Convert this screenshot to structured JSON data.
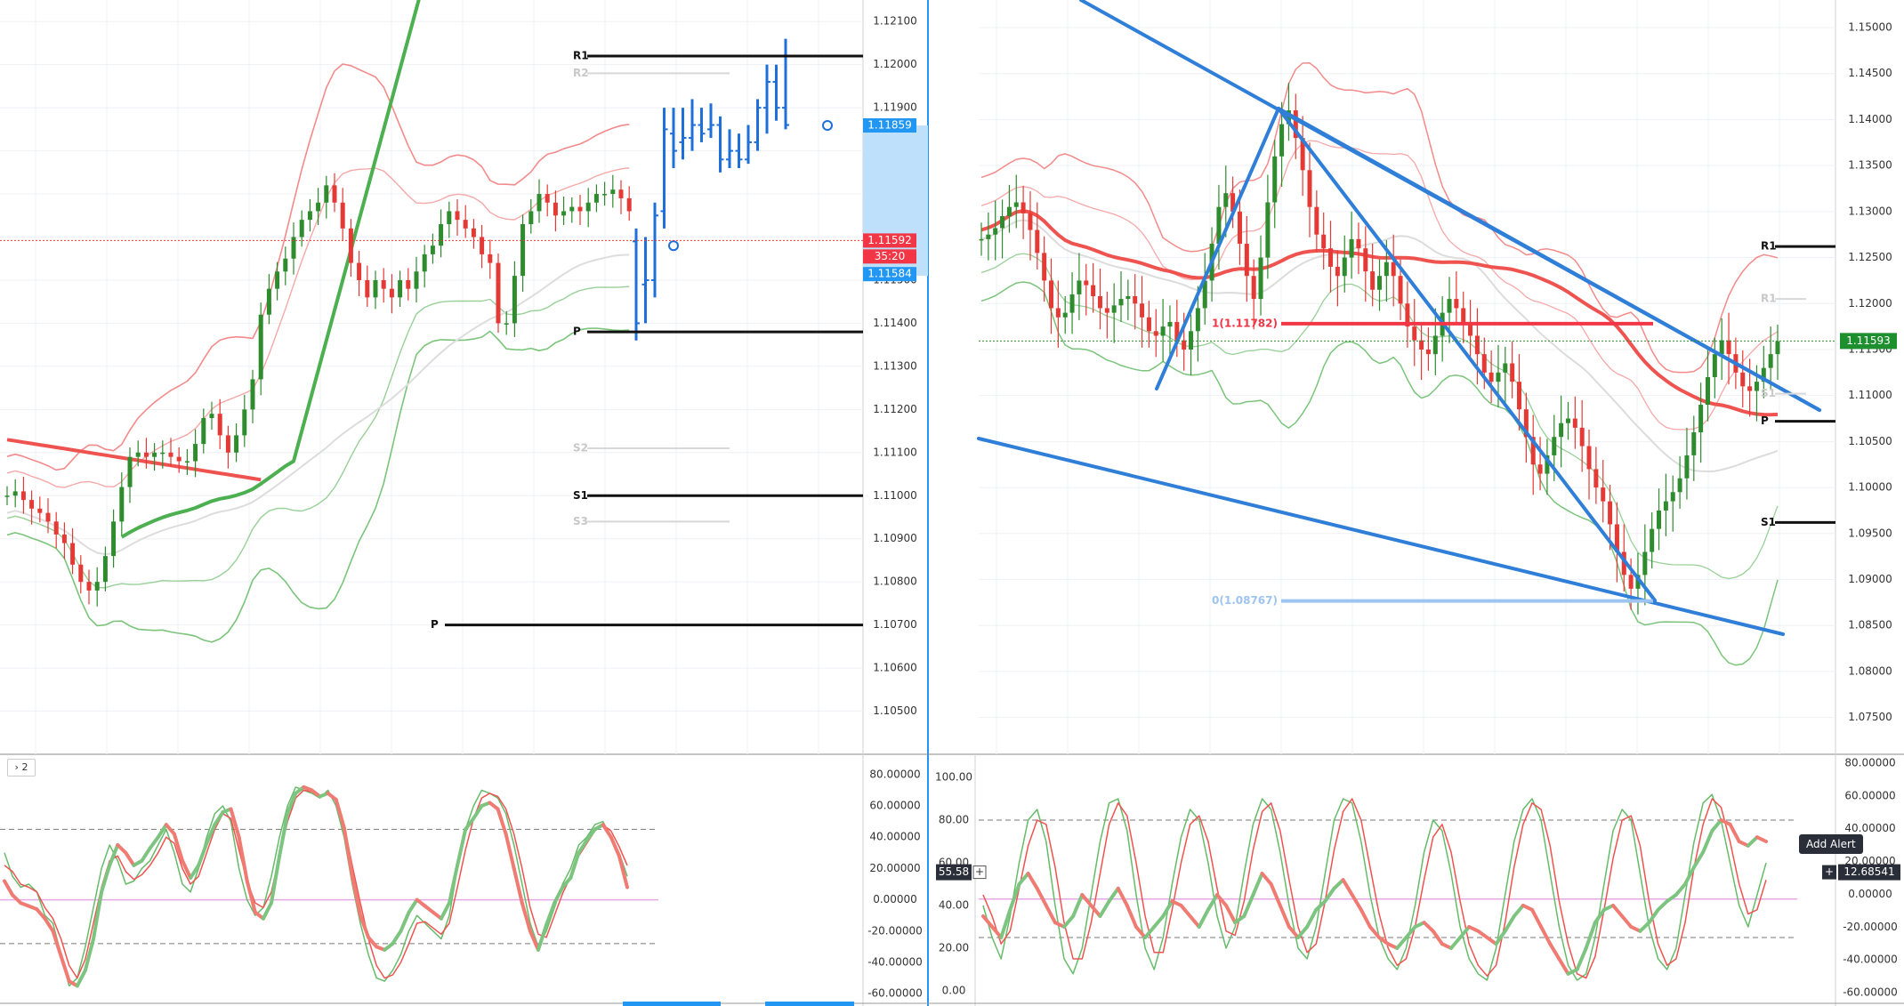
{
  "chart_data": [
    {
      "type": "candlestick",
      "pane": "left-price",
      "ylim": [
        1.104,
        1.1215
      ],
      "y_ticks": [
        "1.12100",
        "1.12000",
        "1.11900",
        "1.11800",
        "1.11700",
        "1.11600",
        "1.11500",
        "1.11400",
        "1.11300",
        "1.11200",
        "1.11100",
        "1.11000",
        "1.10900",
        "1.10800",
        "1.10700",
        "1.10600",
        "1.10500"
      ],
      "price_tags": [
        {
          "label": "1.11859",
          "value": 1.11859,
          "color": "#2196f3"
        },
        {
          "label": "1.11592",
          "value": 1.11592,
          "color": "#f23645"
        },
        {
          "label": "35:20",
          "value": 1.11555,
          "color": "#f23645"
        },
        {
          "label": "1.11584",
          "value": 1.11514,
          "color": "#2196f3"
        }
      ],
      "pivot_levels": [
        {
          "label": "R1",
          "value": 1.1202,
          "style": "solid"
        },
        {
          "label": "R2",
          "value": 1.1198,
          "style": "faint"
        },
        {
          "label": "P",
          "value": 1.1138,
          "style": "solid"
        },
        {
          "label": "S2",
          "value": 1.1111,
          "style": "faint"
        },
        {
          "label": "S1",
          "value": 1.11,
          "style": "solid"
        },
        {
          "label": "S3",
          "value": 1.1094,
          "style": "faint"
        },
        {
          "label": "P",
          "value": 1.107,
          "style": "solid"
        }
      ],
      "last_price_line": 1.11592,
      "candles": [
        1.11,
        1.1101,
        1.1099,
        1.1097,
        1.1096,
        1.1094,
        1.1091,
        1.1089,
        1.1084,
        1.108,
        1.1078,
        1.108,
        1.1086,
        1.1094,
        1.1102,
        1.1109,
        1.111,
        1.1109,
        1.111,
        1.111,
        1.1109,
        1.1108,
        1.1108,
        1.1112,
        1.1118,
        1.1119,
        1.1114,
        1.111,
        1.1114,
        1.112,
        1.1127,
        1.1142,
        1.1148,
        1.1152,
        1.1155,
        1.116,
        1.1164,
        1.1166,
        1.1168,
        1.1172,
        1.1168,
        1.1162,
        1.1154,
        1.115,
        1.1146,
        1.115,
        1.1148,
        1.1146,
        1.115,
        1.1148,
        1.1152,
        1.1156,
        1.1158,
        1.1163,
        1.1166,
        1.1164,
        1.1162,
        1.116,
        1.1156,
        1.1154,
        1.114,
        1.114,
        1.1151,
        1.1163,
        1.1166,
        1.117,
        1.1168,
        1.1165,
        1.1166,
        1.1167,
        1.1166,
        1.1168,
        1.117,
        1.117,
        1.1171,
        1.1169,
        1.1166
      ],
      "projection_bars": [
        {
          "o": 1.1159,
          "h": 1.1162,
          "l": 1.1136,
          "c": 1.114
        },
        {
          "o": 1.1149,
          "h": 1.116,
          "l": 1.114,
          "c": 1.115
        },
        {
          "o": 1.115,
          "h": 1.1168,
          "l": 1.1146,
          "c": 1.1165
        },
        {
          "o": 1.1166,
          "h": 1.119,
          "l": 1.1162,
          "c": 1.1185
        },
        {
          "o": 1.1184,
          "h": 1.119,
          "l": 1.1176,
          "c": 1.118
        },
        {
          "o": 1.1182,
          "h": 1.119,
          "l": 1.1178,
          "c": 1.1183
        },
        {
          "o": 1.1183,
          "h": 1.1192,
          "l": 1.118,
          "c": 1.1186
        },
        {
          "o": 1.1186,
          "h": 1.119,
          "l": 1.1182,
          "c": 1.1184
        },
        {
          "o": 1.1185,
          "h": 1.1191,
          "l": 1.1183,
          "c": 1.1186
        },
        {
          "o": 1.1186,
          "h": 1.1188,
          "l": 1.1175,
          "c": 1.1178
        },
        {
          "o": 1.1178,
          "h": 1.1185,
          "l": 1.1176,
          "c": 1.118
        },
        {
          "o": 1.118,
          "h": 1.1184,
          "l": 1.1176,
          "c": 1.1178
        },
        {
          "o": 1.1178,
          "h": 1.1186,
          "l": 1.1177,
          "c": 1.1182
        },
        {
          "o": 1.1182,
          "h": 1.1192,
          "l": 1.118,
          "c": 1.119
        },
        {
          "o": 1.119,
          "h": 1.12,
          "l": 1.1184,
          "c": 1.1196
        },
        {
          "o": 1.1196,
          "h": 1.12,
          "l": 1.1187,
          "c": 1.119
        },
        {
          "o": 1.119,
          "h": 1.1206,
          "l": 1.1185,
          "c": 1.1186
        }
      ]
    },
    {
      "type": "candlestick",
      "pane": "right-price",
      "ylim": [
        1.071,
        1.153
      ],
      "y_ticks": [
        "1.15000",
        "1.14500",
        "1.14000",
        "1.13500",
        "1.13000",
        "1.12500",
        "1.12000",
        "1.11500",
        "1.11000",
        "1.10500",
        "1.10000",
        "1.09500",
        "1.09000",
        "1.08500",
        "1.08000",
        "1.07500"
      ],
      "price_tags": [
        {
          "label": "1.11593",
          "value": 1.11593,
          "color": "#1e8f2e"
        }
      ],
      "pivot_levels": [
        {
          "label": "R1",
          "value": 1.1262,
          "style": "solid"
        },
        {
          "label": "R1",
          "value": 1.1205,
          "style": "faint"
        },
        {
          "label": "S1",
          "value": 1.1102,
          "style": "faint"
        },
        {
          "label": "P",
          "value": 1.1072,
          "style": "solid"
        },
        {
          "label": "S1",
          "value": 1.0962,
          "style": "solid"
        }
      ],
      "fib_levels": [
        {
          "label": "1(1.11782)",
          "value": 1.11782,
          "color": "#f23645"
        },
        {
          "label": "0(1.08767)",
          "value": 1.08767,
          "color": "#9ec5f0"
        }
      ],
      "candles": [
        1.127,
        1.1275,
        1.1282,
        1.1295,
        1.1305,
        1.131,
        1.1298,
        1.128,
        1.1255,
        1.1225,
        1.1195,
        1.1185,
        1.119,
        1.121,
        1.1225,
        1.122,
        1.1208,
        1.1195,
        1.119,
        1.1198,
        1.1205,
        1.1208,
        1.12,
        1.1185,
        1.117,
        1.1165,
        1.1175,
        1.118,
        1.116,
        1.115,
        1.117,
        1.1195,
        1.1225,
        1.1265,
        1.1305,
        1.132,
        1.13,
        1.1265,
        1.123,
        1.1205,
        1.125,
        1.131,
        1.136,
        1.1395,
        1.141,
        1.138,
        1.1345,
        1.1305,
        1.1275,
        1.126,
        1.124,
        1.123,
        1.125,
        1.127,
        1.126,
        1.1235,
        1.1215,
        1.123,
        1.1245,
        1.123,
        1.12,
        1.1175,
        1.116,
        1.115,
        1.1145,
        1.1165,
        1.119,
        1.1205,
        1.1195,
        1.118,
        1.1165,
        1.1145,
        1.1125,
        1.1115,
        1.1125,
        1.1135,
        1.1115,
        1.1085,
        1.1055,
        1.1025,
        1.1015,
        1.1035,
        1.1055,
        1.107,
        1.1075,
        1.1065,
        1.1045,
        1.102,
        1.1,
        1.0985,
        1.096,
        1.093,
        1.0905,
        1.089,
        1.0905,
        1.093,
        1.0955,
        1.0975,
        1.0985,
        1.0995,
        1.101,
        1.1035,
        1.106,
        1.109,
        1.112,
        1.1145,
        1.116,
        1.1145,
        1.1125,
        1.111,
        1.1105,
        1.1115,
        1.113,
        1.1145,
        1.1159
      ]
    },
    {
      "type": "oscillator",
      "pane": "left-oscillator",
      "ylim": [
        -65,
        85
      ],
      "y_ticks": [
        "80.00000",
        "60.00000",
        "40.00000",
        "20.00000",
        "0.00000",
        "-20.00000",
        "-40.00000",
        "-60.00000"
      ],
      "bands": [
        45,
        -28
      ],
      "zero_line": 0,
      "k": [
        30,
        15,
        8,
        10,
        5,
        -10,
        -15,
        -35,
        -55,
        -50,
        -30,
        -5,
        20,
        35,
        25,
        10,
        12,
        20,
        25,
        35,
        45,
        30,
        10,
        5,
        20,
        40,
        55,
        60,
        50,
        20,
        0,
        -10,
        -5,
        15,
        40,
        60,
        72,
        70,
        68,
        65,
        70,
        60,
        40,
        10,
        -15,
        -35,
        -50,
        -52,
        -45,
        -35,
        -20,
        -10,
        -15,
        -20,
        -25,
        -10,
        20,
        45,
        60,
        70,
        68,
        65,
        55,
        35,
        10,
        -15,
        -30,
        -20,
        -5,
        10,
        20,
        35,
        40,
        48,
        50,
        40,
        30,
        15
      ],
      "d": [
        22,
        18,
        10,
        8,
        5,
        -5,
        -12,
        -25,
        -42,
        -50,
        -38,
        -15,
        8,
        25,
        28,
        18,
        13,
        16,
        22,
        30,
        40,
        36,
        20,
        10,
        15,
        30,
        45,
        55,
        52,
        32,
        12,
        -2,
        -5,
        5,
        28,
        50,
        65,
        70,
        69,
        66,
        68,
        64,
        48,
        22,
        -2,
        -25,
        -42,
        -50,
        -48,
        -40,
        -28,
        -15,
        -14,
        -18,
        -22,
        -15,
        8,
        32,
        52,
        65,
        68,
        66,
        58,
        42,
        20,
        -5,
        -22,
        -24,
        -10,
        4,
        15,
        28,
        36,
        44,
        48,
        44,
        34,
        22
      ],
      "thick": [
        12,
        3,
        -2,
        -4,
        -6,
        -12,
        -20,
        -36,
        -52,
        -55,
        -45,
        -25,
        5,
        22,
        35,
        30,
        22,
        25,
        33,
        40,
        48,
        42,
        25,
        14,
        22,
        36,
        48,
        56,
        58,
        40,
        12,
        -8,
        -12,
        -2,
        28,
        55,
        68,
        72,
        70,
        66,
        68,
        64,
        46,
        15,
        -10,
        -24,
        -30,
        -32,
        -28,
        -20,
        -8,
        0,
        -4,
        -8,
        -12,
        -2,
        22,
        45,
        52,
        60,
        62,
        58,
        42,
        20,
        -2,
        -20,
        -32,
        -16,
        -2,
        8,
        14,
        30,
        38,
        45,
        48,
        40,
        28,
        8
      ]
    },
    {
      "type": "oscillator",
      "pane": "right-oscillator",
      "ylim": [
        -5,
        105
      ],
      "y_ticks_left": [
        "100.00",
        "80.00",
        "60.00",
        "40.00",
        "20.00",
        "0.00"
      ],
      "y_ticks_right": [
        "80.00000",
        "60.00000",
        "40.00000",
        "20.00000",
        "0.00000",
        "-20.00000",
        "-40.00000",
        "-60.00000"
      ],
      "bands": [
        80,
        25
      ],
      "zero_line": 43,
      "cursor_tags": [
        {
          "label": "55.58",
          "value": 55.58,
          "side": "left"
        },
        {
          "label": "12.68541",
          "value": 55.58,
          "side": "right"
        }
      ],
      "k": [
        40,
        25,
        15,
        35,
        60,
        80,
        85,
        70,
        40,
        15,
        8,
        20,
        45,
        70,
        88,
        90,
        75,
        45,
        20,
        10,
        25,
        50,
        72,
        85,
        80,
        60,
        35,
        20,
        30,
        55,
        78,
        90,
        85,
        65,
        40,
        20,
        15,
        30,
        55,
        80,
        90,
        88,
        70,
        45,
        25,
        15,
        10,
        20,
        40,
        65,
        80,
        75,
        55,
        30,
        15,
        8,
        5,
        20,
        45,
        70,
        85,
        90,
        80,
        55,
        30,
        12,
        5,
        8,
        25,
        50,
        75,
        85,
        80,
        55,
        30,
        15,
        10,
        20,
        45,
        70,
        88,
        92,
        80,
        60,
        40,
        30,
        45,
        60
      ],
      "d": [
        45,
        35,
        22,
        28,
        48,
        68,
        80,
        78,
        58,
        32,
        15,
        15,
        32,
        55,
        78,
        88,
        82,
        60,
        35,
        18,
        18,
        38,
        60,
        78,
        82,
        70,
        48,
        28,
        26,
        42,
        66,
        84,
        88,
        75,
        52,
        30,
        18,
        22,
        42,
        66,
        84,
        90,
        80,
        58,
        36,
        20,
        12,
        15,
        30,
        52,
        72,
        78,
        65,
        42,
        22,
        12,
        7,
        12,
        32,
        58,
        78,
        88,
        85,
        68,
        42,
        22,
        8,
        6,
        16,
        38,
        62,
        80,
        82,
        68,
        42,
        22,
        12,
        15,
        32,
        58,
        78,
        90,
        86,
        70,
        50,
        36,
        38,
        52
      ],
      "thick": [
        35,
        30,
        25,
        38,
        50,
        55,
        48,
        40,
        32,
        30,
        35,
        45,
        40,
        35,
        42,
        48,
        40,
        30,
        25,
        30,
        35,
        42,
        40,
        35,
        30,
        38,
        45,
        40,
        32,
        35,
        45,
        55,
        50,
        40,
        30,
        25,
        30,
        38,
        42,
        48,
        52,
        45,
        38,
        30,
        25,
        22,
        20,
        25,
        30,
        32,
        28,
        22,
        20,
        25,
        30,
        28,
        25,
        22,
        28,
        35,
        40,
        38,
        30,
        22,
        15,
        8,
        10,
        20,
        32,
        38,
        40,
        35,
        30,
        28,
        32,
        38,
        42,
        45,
        50,
        58,
        65,
        75,
        80,
        78,
        70,
        68,
        72,
        70
      ]
    }
  ],
  "ui": {
    "pane_toggle_label": "› 2",
    "add_alert_label": "Add Alert",
    "plus_glyph": "+"
  }
}
